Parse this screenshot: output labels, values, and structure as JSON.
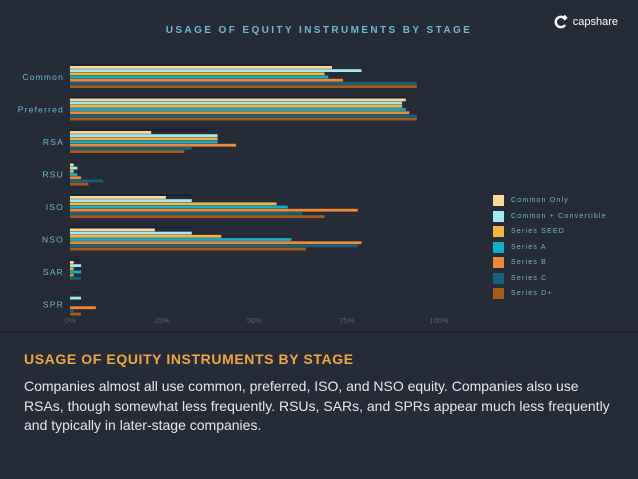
{
  "brand": {
    "name": "capshare",
    "logo_icon": "capshare-logo-icon"
  },
  "colors": {
    "background": "#262b38",
    "title": "#6fb8d0",
    "desc_title": "#f0a83e",
    "desc_text": "#e6e8ec"
  },
  "chart_data": {
    "type": "bar",
    "orientation": "horizontal",
    "title": "USAGE OF EQUITY INSTRUMENTS BY STAGE",
    "categories": [
      "Common",
      "Preferred",
      "RSA",
      "RSU",
      "ISO",
      "NSO",
      "SAR",
      "SPR"
    ],
    "x_ticks": [
      "0%",
      "25%",
      "50%",
      "75%",
      "100%"
    ],
    "xlim": [
      0,
      100
    ],
    "grid": false,
    "legend_position": "right",
    "series": [
      {
        "name": "Common Only",
        "color": "#f7d99a",
        "values": [
          71,
          91,
          22,
          1,
          26,
          23,
          1,
          0
        ]
      },
      {
        "name": "Common + Convertible",
        "color": "#a4e8f2",
        "values": [
          79,
          90,
          40,
          2,
          33,
          33,
          3,
          3
        ]
      },
      {
        "name": "Series SEED",
        "color": "#f6b53f",
        "values": [
          69,
          90,
          40,
          1,
          56,
          41,
          1,
          0
        ]
      },
      {
        "name": "Series A",
        "color": "#12afc9",
        "values": [
          70,
          91,
          40,
          2,
          59,
          60,
          3,
          0
        ]
      },
      {
        "name": "Series B",
        "color": "#ee8a37",
        "values": [
          74,
          92,
          45,
          3,
          78,
          79,
          1,
          7
        ]
      },
      {
        "name": "Series C",
        "color": "#19617a",
        "values": [
          94,
          94,
          33,
          9,
          63,
          78,
          3,
          1
        ]
      },
      {
        "name": "Series D+",
        "color": "#a25c1c",
        "values": [
          94,
          94,
          31,
          5,
          69,
          64,
          0,
          3
        ]
      }
    ],
    "threshold_ticks": [
      71,
      91,
      38,
      2,
      33,
      33,
      3,
      3
    ]
  },
  "description": {
    "title": "USAGE OF EQUITY INSTRUMENTS BY STAGE",
    "body": "Companies almost all use common, preferred, ISO, and NSO equity. Companies also use RSAs, though somewhat less frequently.  RSUs, SARs, and SPRs appear much less frequently and typically in later-stage companies."
  }
}
